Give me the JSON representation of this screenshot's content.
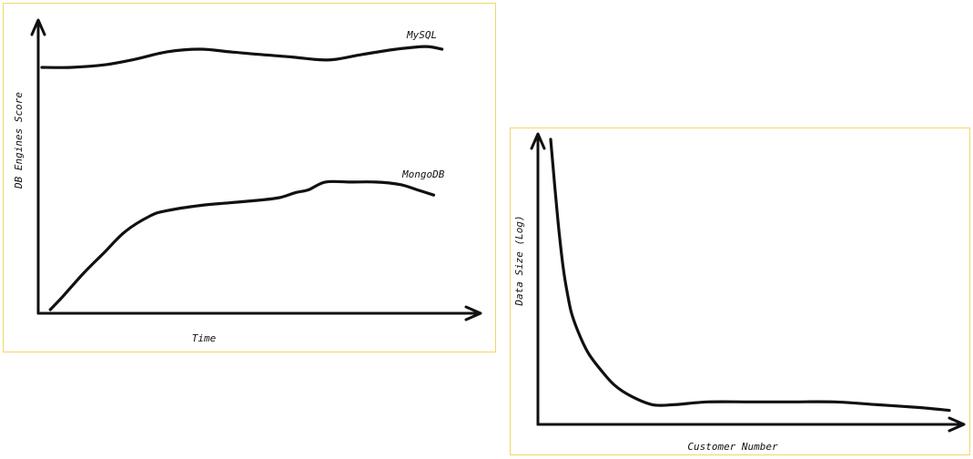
{
  "chart_data": [
    {
      "type": "line",
      "title": "",
      "xlabel": "Time",
      "ylabel": "DB Engines Score",
      "grid": false,
      "legend": "none",
      "xlim": [
        0,
        1
      ],
      "ylim": [
        0,
        1
      ],
      "series": [
        {
          "name": "MySQL",
          "color": "#111111",
          "x": [
            0,
            0.07,
            0.15,
            0.22,
            0.3,
            0.38,
            0.45,
            0.52,
            0.6,
            0.66,
            0.7,
            0.77,
            0.85,
            0.92,
            0.96
          ],
          "y": [
            0.93,
            0.93,
            0.94,
            0.96,
            0.99,
            1.0,
            0.99,
            0.98,
            0.97,
            0.96,
            0.96,
            0.98,
            1.0,
            1.01,
            1.0
          ]
        },
        {
          "name": "MongoDB",
          "color": "#111111",
          "x": [
            0.02,
            0.05,
            0.1,
            0.15,
            0.2,
            0.26,
            0.3,
            0.38,
            0.45,
            0.52,
            0.57,
            0.61,
            0.64,
            0.68,
            0.74,
            0.8,
            0.86,
            0.9,
            0.94
          ],
          "y": [
            0.0,
            0.05,
            0.14,
            0.22,
            0.3,
            0.36,
            0.38,
            0.4,
            0.41,
            0.42,
            0.43,
            0.45,
            0.46,
            0.49,
            0.49,
            0.49,
            0.48,
            0.46,
            0.44
          ]
        }
      ]
    },
    {
      "type": "line",
      "title": "",
      "xlabel": "Customer Number",
      "ylabel": "Data Size (Log)",
      "grid": false,
      "legend": "none",
      "log_scale_y": true,
      "xlim": [
        0,
        1
      ],
      "ylim": [
        0,
        1
      ],
      "series": [
        {
          "name": "",
          "color": "#111111",
          "x": [
            0.03,
            0.04,
            0.05,
            0.06,
            0.07,
            0.08,
            0.1,
            0.12,
            0.15,
            0.18,
            0.22,
            0.27,
            0.32,
            0.4,
            0.5,
            0.6,
            0.7,
            0.8,
            0.9,
            0.97
          ],
          "y": [
            1.0,
            0.83,
            0.67,
            0.54,
            0.45,
            0.38,
            0.3,
            0.24,
            0.18,
            0.13,
            0.09,
            0.06,
            0.06,
            0.07,
            0.07,
            0.07,
            0.07,
            0.06,
            0.05,
            0.04
          ]
        }
      ]
    }
  ]
}
